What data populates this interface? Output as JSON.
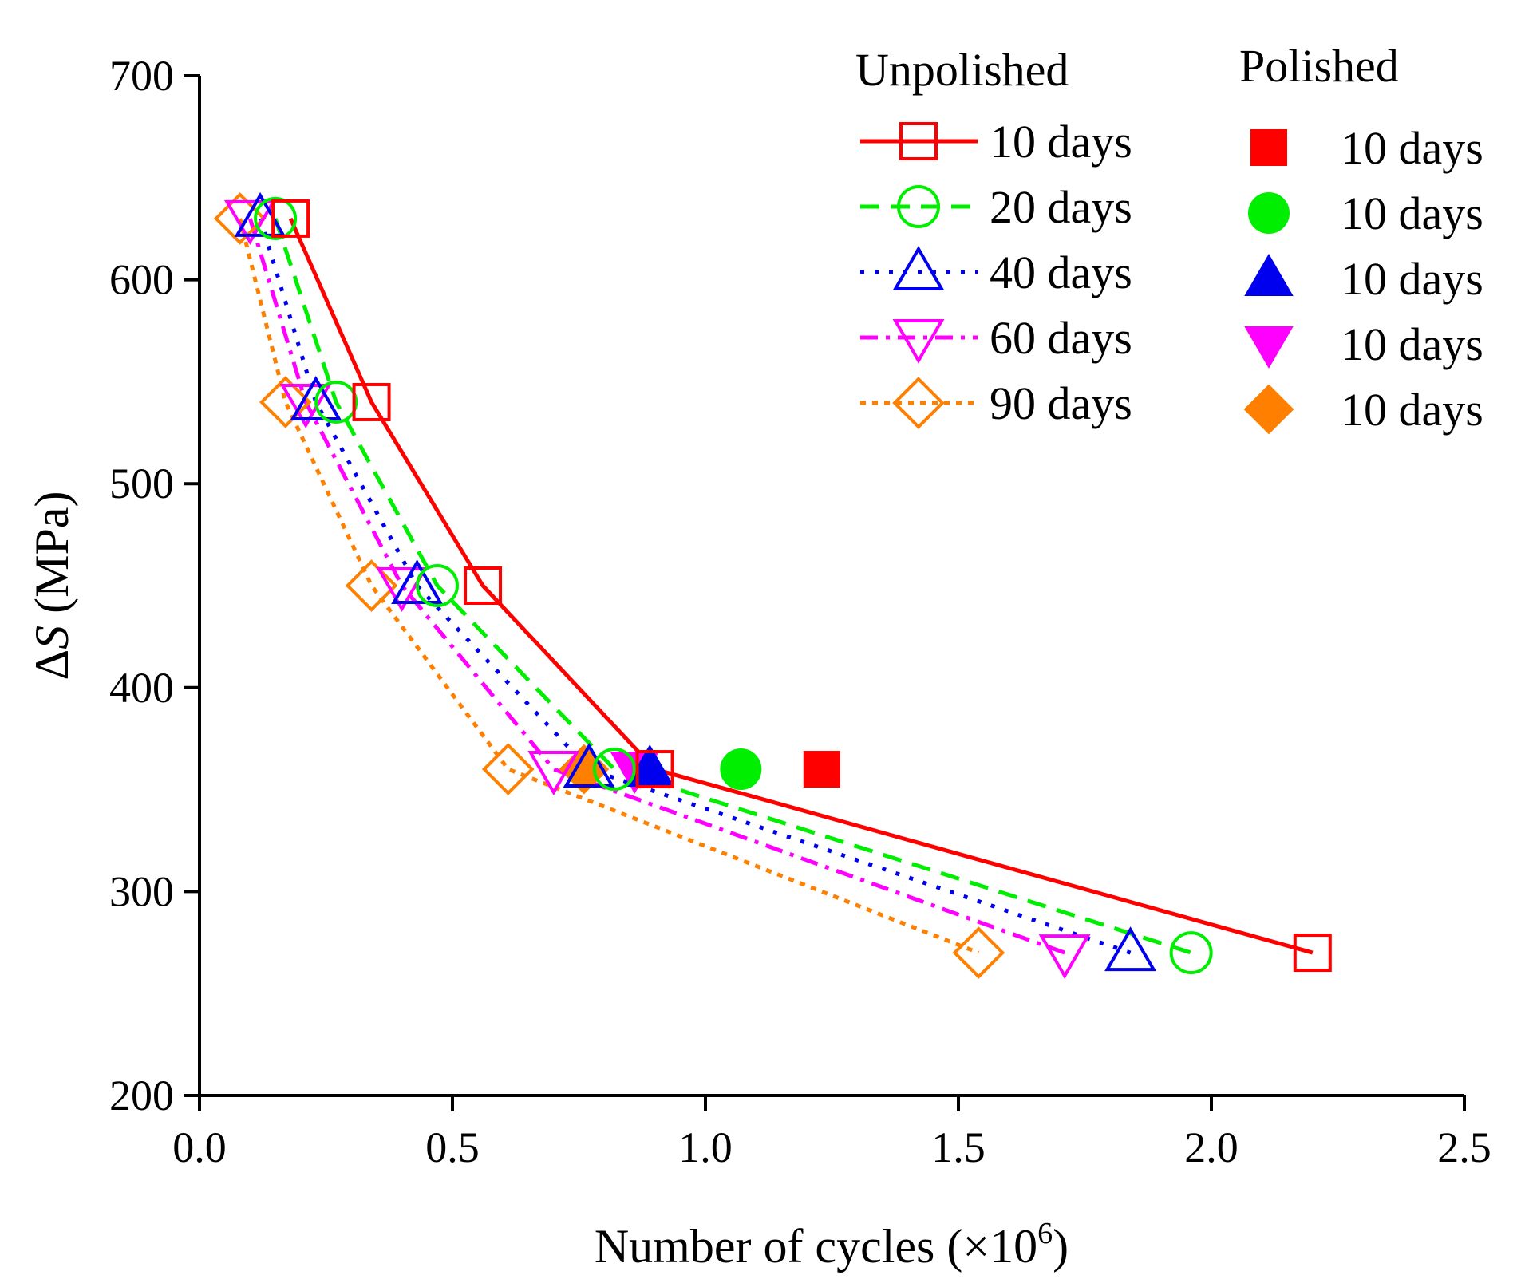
{
  "chart_data": {
    "type": "scatter",
    "xlabel": "Number of cycles (×10",
    "xlabel_sup": "6",
    "xlabel_close": ")",
    "ylabel_delta": "Δ",
    "ylabel_var": "S",
    "ylabel_unit": " (MPa)",
    "xlim": [
      0.0,
      2.5
    ],
    "ylim": [
      200,
      700
    ],
    "xticks": [
      0.0,
      0.5,
      1.0,
      1.5,
      2.0,
      2.5
    ],
    "xtick_labels": [
      "0.0",
      "0.5",
      "1.0",
      "1.5",
      "2.0",
      "2.5"
    ],
    "yticks": [
      200,
      300,
      400,
      500,
      600,
      700
    ],
    "ytick_labels": [
      "200",
      "300",
      "400",
      "500",
      "600",
      "700"
    ],
    "grid": false,
    "legend_groups": [
      {
        "title": "Unpolished",
        "placement": "top-right"
      },
      {
        "title": "Polished",
        "placement": "top-right"
      }
    ],
    "series": [
      {
        "name": "10 days",
        "group": "Unpolished",
        "color": "#ff0000",
        "marker": "square",
        "filled": false,
        "line": "solid",
        "x": [
          0.18,
          0.34,
          0.56,
          0.9,
          2.2
        ],
        "y": [
          630,
          540,
          450,
          360,
          270
        ]
      },
      {
        "name": "20 days",
        "group": "Unpolished",
        "color": "#00ee00",
        "marker": "circle",
        "filled": false,
        "line": "dashed",
        "x": [
          0.15,
          0.27,
          0.47,
          0.82,
          1.96
        ],
        "y": [
          630,
          540,
          450,
          360,
          270
        ]
      },
      {
        "name": "40 days",
        "group": "Unpolished",
        "color": "#0000ee",
        "marker": "triangle-up",
        "filled": false,
        "line": "dotted",
        "x": [
          0.12,
          0.23,
          0.43,
          0.77,
          1.84
        ],
        "y": [
          630,
          540,
          450,
          360,
          270
        ]
      },
      {
        "name": "60 days",
        "group": "Unpolished",
        "color": "#ff00ff",
        "marker": "triangle-down",
        "filled": false,
        "line": "dashdot",
        "x": [
          0.1,
          0.21,
          0.4,
          0.7,
          1.71
        ],
        "y": [
          630,
          540,
          450,
          360,
          270
        ]
      },
      {
        "name": "90 days",
        "group": "Unpolished",
        "color": "#ff8000",
        "marker": "diamond",
        "filled": false,
        "line": "dotted-dense",
        "x": [
          0.08,
          0.17,
          0.34,
          0.61,
          1.54
        ],
        "y": [
          630,
          540,
          450,
          360,
          270
        ]
      },
      {
        "name": "10 days",
        "group": "Polished",
        "color": "#ff0000",
        "marker": "square",
        "filled": true,
        "line": "none",
        "x": [
          1.23
        ],
        "y": [
          360
        ]
      },
      {
        "name": "10 days",
        "group": "Polished",
        "color": "#00ee00",
        "marker": "circle",
        "filled": true,
        "line": "none",
        "x": [
          1.07
        ],
        "y": [
          360
        ]
      },
      {
        "name": "10 days",
        "group": "Polished",
        "color": "#0000ee",
        "marker": "triangle-up",
        "filled": true,
        "line": "none",
        "x": [
          0.89
        ],
        "y": [
          360
        ]
      },
      {
        "name": "10 days",
        "group": "Polished",
        "color": "#ff00ff",
        "marker": "triangle-down",
        "filled": true,
        "line": "none",
        "x": [
          0.86
        ],
        "y": [
          360
        ]
      },
      {
        "name": "10 days",
        "group": "Polished",
        "color": "#ff8000",
        "marker": "diamond",
        "filled": true,
        "line": "none",
        "x": [
          0.76
        ],
        "y": [
          360
        ]
      }
    ]
  }
}
